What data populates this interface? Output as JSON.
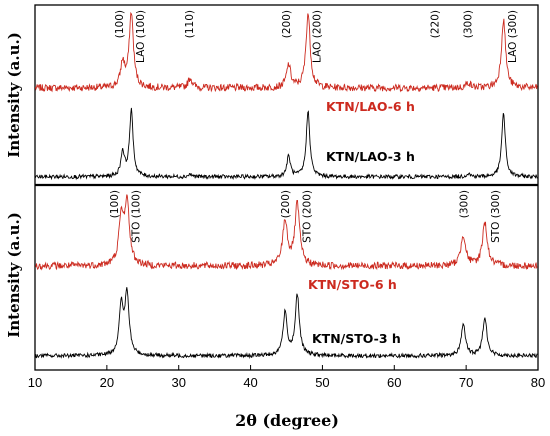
{
  "chart_data": {
    "type": "line",
    "xlabel": "2θ (degree)",
    "xlim": [
      10,
      80
    ],
    "x_ticks": [
      "10",
      "20",
      "30",
      "40",
      "50",
      "60",
      "70",
      "80"
    ],
    "panels": [
      {
        "ylabel": "Intensity (a.u.)",
        "series": [
          {
            "name": "KTN/LAO-6 h",
            "color": "#cc2a1f",
            "peaks": [
              {
                "x": 22.2,
                "height": 0.32
              },
              {
                "x": 23.4,
                "height": 0.98
              },
              {
                "x": 31.6,
                "height": 0.13
              },
              {
                "x": 45.3,
                "height": 0.3
              },
              {
                "x": 48.0,
                "height": 0.98
              },
              {
                "x": 70.3,
                "height": 0.07
              },
              {
                "x": 75.2,
                "height": 0.9
              }
            ]
          },
          {
            "name": "KTN/LAO-3 h",
            "color": "#000000",
            "peaks": [
              {
                "x": 22.2,
                "height": 0.3
              },
              {
                "x": 23.4,
                "height": 0.8
              },
              {
                "x": 31.6,
                "height": 0.03
              },
              {
                "x": 45.3,
                "height": 0.25
              },
              {
                "x": 48.0,
                "height": 0.8
              },
              {
                "x": 70.3,
                "height": 0.04
              },
              {
                "x": 75.2,
                "height": 0.78
              }
            ]
          }
        ],
        "annotations": [
          {
            "text": "(100)",
            "x": 21.7
          },
          {
            "text": "LAO (100)",
            "x": 24.6
          },
          {
            "text": "(110)",
            "x": 31.4
          },
          {
            "text": "(200)",
            "x": 44.9
          },
          {
            "text": "LAO (200)",
            "x": 49.2
          },
          {
            "text": "(220)",
            "x": 65.6
          },
          {
            "text": "(300)",
            "x": 70.2
          },
          {
            "text": "LAO (300)",
            "x": 76.4
          }
        ]
      },
      {
        "ylabel": "Intensity (a.u.)",
        "series": [
          {
            "name": "KTN/STO-6 h",
            "color": "#cc2a1f",
            "peaks": [
              {
                "x": 22.0,
                "height": 0.72
              },
              {
                "x": 22.8,
                "height": 0.98
              },
              {
                "x": 44.8,
                "height": 0.72
              },
              {
                "x": 46.5,
                "height": 0.98
              },
              {
                "x": 69.6,
                "height": 0.5
              },
              {
                "x": 72.6,
                "height": 0.7
              }
            ]
          },
          {
            "name": "KTN/STO-3 h",
            "color": "#000000",
            "peaks": [
              {
                "x": 22.0,
                "height": 0.68
              },
              {
                "x": 22.8,
                "height": 0.85
              },
              {
                "x": 44.8,
                "height": 0.6
              },
              {
                "x": 46.5,
                "height": 0.85
              },
              {
                "x": 69.6,
                "height": 0.45
              },
              {
                "x": 72.6,
                "height": 0.55
              }
            ]
          }
        ],
        "annotations": [
          {
            "text": "(100)",
            "x": 21.0
          },
          {
            "text": "STO (100)",
            "x": 24.0
          },
          {
            "text": "(200)",
            "x": 44.8
          },
          {
            "text": "STO (200)",
            "x": 47.8
          },
          {
            "text": "(300)",
            "x": 69.6
          },
          {
            "text": "STO (300)",
            "x": 74.0
          }
        ]
      }
    ]
  }
}
